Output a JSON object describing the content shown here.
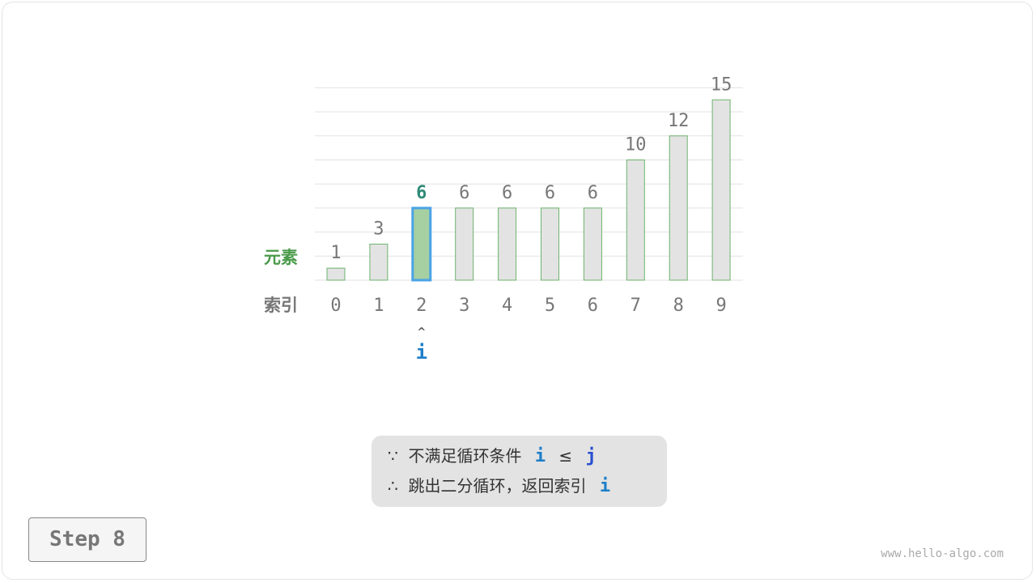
{
  "labels": {
    "element": "元素",
    "index": "索引",
    "pointer": "i",
    "pointer_arrow": "^"
  },
  "colors": {
    "bar_fill": "#e3e3e3",
    "bar_stroke": "#6db36d",
    "highlight_fill": "#a6cfa2",
    "highlight_stroke": "#4aa3e6",
    "highlight_text": "#2f8a77",
    "pointer": "#1d7fc9",
    "j_color": "#2a4fd0",
    "element_label": "#4a9a4a",
    "index_label": "#777777"
  },
  "chart_data": {
    "type": "bar",
    "categories": [
      "0",
      "1",
      "2",
      "3",
      "4",
      "5",
      "6",
      "7",
      "8",
      "9"
    ],
    "values": [
      1,
      3,
      6,
      6,
      6,
      6,
      6,
      10,
      12,
      15
    ],
    "highlight_index": 2,
    "ylim": [
      0,
      16
    ],
    "grid": true
  },
  "condition": {
    "line1_prefix": "∵",
    "line1_text": "不满足循环条件",
    "line1_var_i": "i",
    "line1_op": "≤",
    "line1_var_j": "j",
    "line2_prefix": "∴",
    "line2_text": "跳出二分循环，返回索引",
    "line2_var": "i"
  },
  "step_label": "Step 8",
  "watermark": "www.hello-algo.com"
}
